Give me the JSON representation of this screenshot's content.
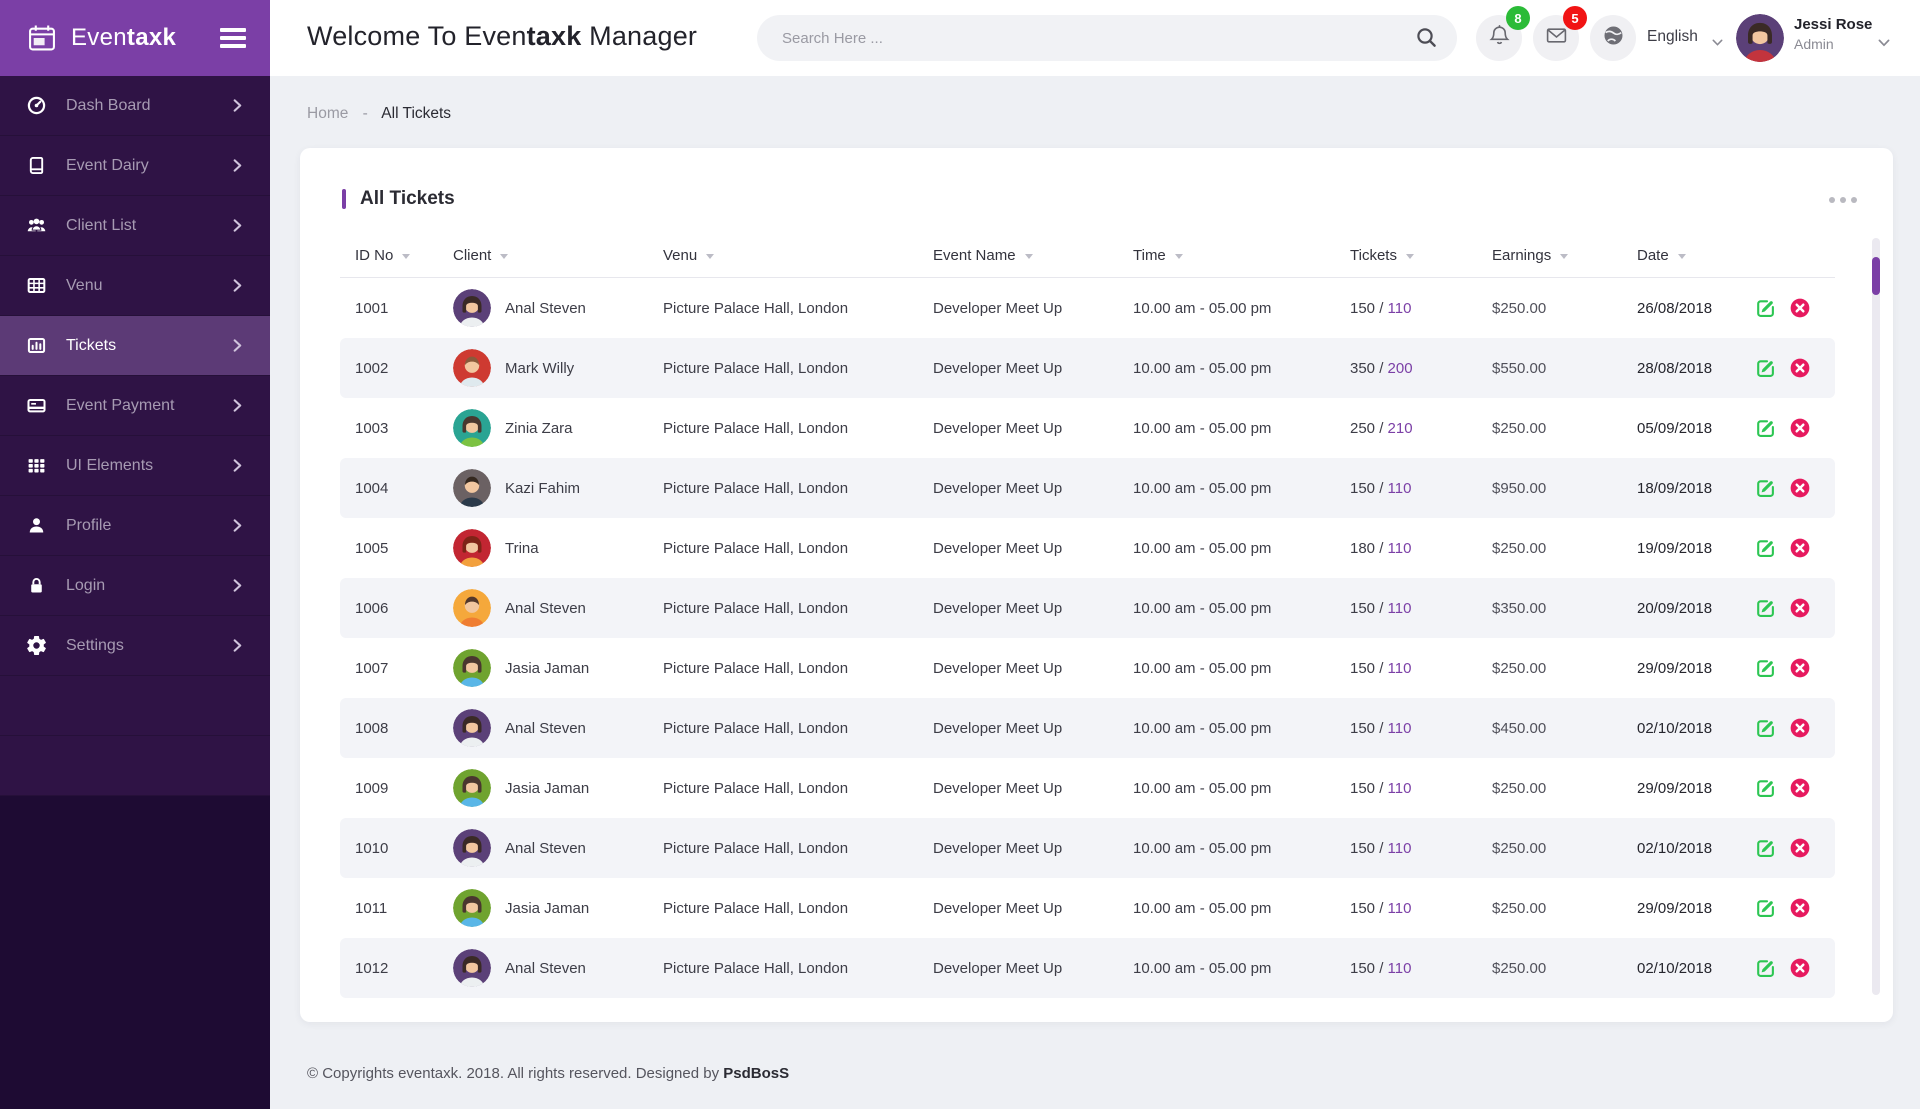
{
  "colors": {
    "accent_purple": "#7b3fa6",
    "sidebar_bg": "#2f1345",
    "sidebar_active": "#5c3a76",
    "badge_green": "#2bbb37",
    "badge_red": "#f11414",
    "edit_green": "#2dc653",
    "delete_crimson": "#e61a5f"
  },
  "sidebar": {
    "brand": {
      "regular": "Even",
      "bold": "taxk"
    },
    "items": [
      {
        "label": "Dash Board",
        "icon": "dashboard-icon",
        "active": false
      },
      {
        "label": "Event Dairy",
        "icon": "event-diary-icon",
        "active": false
      },
      {
        "label": "Client List",
        "icon": "client-list-icon",
        "active": false
      },
      {
        "label": "Venu",
        "icon": "venue-grid-icon",
        "active": false
      },
      {
        "label": "Tickets",
        "icon": "tickets-chart-icon",
        "active": true
      },
      {
        "label": "Event Payment",
        "icon": "payment-card-icon",
        "active": false
      },
      {
        "label": "UI Elements",
        "icon": "ui-grid-icon",
        "active": false
      },
      {
        "label": "Profile",
        "icon": "profile-icon",
        "active": false
      },
      {
        "label": "Login",
        "icon": "lock-icon",
        "active": false
      },
      {
        "label": "Settings",
        "icon": "gear-icon",
        "active": false
      }
    ]
  },
  "header": {
    "title_pre": "Welcome To Even",
    "title_bold": "taxk",
    "title_post": " Manager",
    "search_placeholder": "Search Here ...",
    "notifications_count": "8",
    "messages_count": "5",
    "language": "English",
    "user": {
      "name": "Jessi Rose",
      "role": "Admin"
    }
  },
  "breadcrumb": {
    "home": "Home",
    "separator": "-",
    "current": "All Tickets"
  },
  "table": {
    "title": "All Tickets",
    "columns": [
      "ID No",
      "Client",
      "Venu",
      "Event Name",
      "Time",
      "Tickets",
      "Earnings",
      "Date"
    ],
    "rows": [
      {
        "id": "1001",
        "client": "Anal Steven",
        "venue": "Picture Palace Hall, London",
        "event": "Developer Meet Up",
        "time": "10.00 am - 05.00 pm",
        "tickets": "150",
        "tickets_hl": "110",
        "earnings": "$250.00",
        "date": "26/08/2018",
        "avatar": {
          "bg": "#5b4078",
          "hair": "#3a2a26",
          "shirt": "#eceff1",
          "style": "female"
        }
      },
      {
        "id": "1002",
        "client": "Mark Willy",
        "venue": "Picture Palace Hall, London",
        "event": "Developer Meet Up",
        "time": "10.00 am - 05.00 pm",
        "tickets": "350",
        "tickets_hl": "200",
        "earnings": "$550.00",
        "date": "28/08/2018",
        "avatar": {
          "bg": "#ce3a31",
          "hair": "#8a5a3b",
          "shirt": "#dfe9ee",
          "style": "male"
        }
      },
      {
        "id": "1003",
        "client": "Zinia Zara",
        "venue": "Picture Palace Hall, London",
        "event": "Developer Meet Up",
        "time": "10.00 am - 05.00 pm",
        "tickets": "250",
        "tickets_hl": "210",
        "earnings": "$250.00",
        "date": "05/09/2018",
        "avatar": {
          "bg": "#2aa493",
          "hair": "#4a372f",
          "shirt": "#7cc242",
          "style": "female"
        }
      },
      {
        "id": "1004",
        "client": "Kazi Fahim",
        "venue": "Picture Palace Hall, London",
        "event": "Developer Meet Up",
        "time": "10.00 am - 05.00 pm",
        "tickets": "150",
        "tickets_hl": "110",
        "earnings": "$950.00",
        "date": "18/09/2018",
        "avatar": {
          "bg": "#6b6163",
          "hair": "#35281f",
          "shirt": "#2b3a4a",
          "style": "male"
        }
      },
      {
        "id": "1005",
        "client": "Trina",
        "venue": "Picture Palace Hall, London",
        "event": "Developer Meet Up",
        "time": "10.00 am - 05.00 pm",
        "tickets": "180",
        "tickets_hl": "110",
        "earnings": "$250.00",
        "date": "19/09/2018",
        "avatar": {
          "bg": "#c22632",
          "hair": "#7e2417",
          "shirt": "#f2a03d",
          "style": "female"
        }
      },
      {
        "id": "1006",
        "client": "Anal Steven",
        "venue": "Picture Palace Hall, London",
        "event": "Developer Meet Up",
        "time": "10.00 am - 05.00 pm",
        "tickets": "150",
        "tickets_hl": "110",
        "earnings": "$350.00",
        "date": "20/09/2018",
        "avatar": {
          "bg": "#f5a83b",
          "hair": "#53382b",
          "shirt": "#ef7d31",
          "style": "male"
        }
      },
      {
        "id": "1007",
        "client": "Jasia Jaman",
        "venue": "Picture Palace Hall, London",
        "event": "Developer Meet Up",
        "time": "10.00 am - 05.00 pm",
        "tickets": "150",
        "tickets_hl": "110",
        "earnings": "$250.00",
        "date": "29/09/2018",
        "avatar": {
          "bg": "#6fa32f",
          "hair": "#4a372f",
          "shirt": "#59b6e7",
          "style": "female"
        }
      },
      {
        "id": "1008",
        "client": "Anal Steven",
        "venue": "Picture Palace Hall, London",
        "event": "Developer Meet Up",
        "time": "10.00 am - 05.00 pm",
        "tickets": "150",
        "tickets_hl": "110",
        "earnings": "$450.00",
        "date": "02/10/2018",
        "avatar": {
          "bg": "#5b4078",
          "hair": "#3a2a26",
          "shirt": "#eceff1",
          "style": "female"
        }
      },
      {
        "id": "1009",
        "client": "Jasia Jaman",
        "venue": "Picture Palace Hall, London",
        "event": "Developer Meet Up",
        "time": "10.00 am - 05.00 pm",
        "tickets": "150",
        "tickets_hl": "110",
        "earnings": "$250.00",
        "date": "29/09/2018",
        "avatar": {
          "bg": "#6fa32f",
          "hair": "#4a372f",
          "shirt": "#59b6e7",
          "style": "female"
        }
      },
      {
        "id": "1010",
        "client": "Anal Steven",
        "venue": "Picture Palace Hall, London",
        "event": "Developer Meet Up",
        "time": "10.00 am - 05.00 pm",
        "tickets": "150",
        "tickets_hl": "110",
        "earnings": "$250.00",
        "date": "02/10/2018",
        "avatar": {
          "bg": "#5b4078",
          "hair": "#3a2a26",
          "shirt": "#eceff1",
          "style": "female"
        }
      },
      {
        "id": "1011",
        "client": "Jasia Jaman",
        "venue": "Picture Palace Hall, London",
        "event": "Developer Meet Up",
        "time": "10.00 am - 05.00 pm",
        "tickets": "150",
        "tickets_hl": "110",
        "earnings": "$250.00",
        "date": "29/09/2018",
        "avatar": {
          "bg": "#6fa32f",
          "hair": "#4a372f",
          "shirt": "#59b6e7",
          "style": "female"
        }
      },
      {
        "id": "1012",
        "client": "Anal Steven",
        "venue": "Picture Palace Hall, London",
        "event": "Developer Meet Up",
        "time": "10.00 am - 05.00 pm",
        "tickets": "150",
        "tickets_hl": "110",
        "earnings": "$250.00",
        "date": "02/10/2018",
        "avatar": {
          "bg": "#5b4078",
          "hair": "#3a2a26",
          "shirt": "#eceff1",
          "style": "female"
        }
      }
    ],
    "tickets_separator": " / "
  },
  "footer": {
    "copyright": "© Copyrights eventaxk. 2018. All rights reserved. Designed by ",
    "designer": "PsdBosS"
  }
}
